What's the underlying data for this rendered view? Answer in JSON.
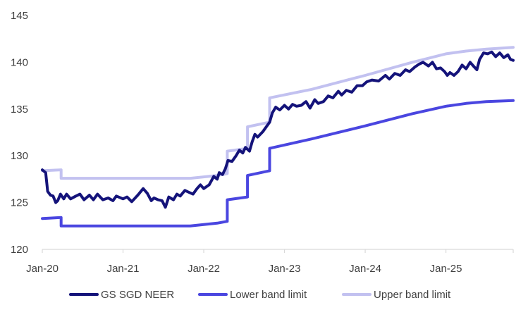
{
  "chart_data": {
    "type": "line",
    "title": "",
    "xlabel": "",
    "ylabel": "",
    "x_ticks": [
      "Jan-20",
      "Jan-21",
      "Jan-22",
      "Jan-23",
      "Jan-24",
      "Jan-25"
    ],
    "y_ticks": [
      120,
      125,
      130,
      135,
      140,
      145
    ],
    "ylim": [
      120,
      145
    ],
    "x_range_months": [
      0,
      70
    ],
    "grid": false,
    "legend_position": "bottom",
    "colors": {
      "neer": "#14137a",
      "lower": "#4a46e0",
      "upper": "#c2c1f0",
      "axis": "#d9d9d9",
      "text": "#404040"
    },
    "series": [
      {
        "name": "GS SGD NEER",
        "key": "neer",
        "points": [
          [
            0,
            128.5
          ],
          [
            0.5,
            128.2
          ],
          [
            0.8,
            126.2
          ],
          [
            1.2,
            125.8
          ],
          [
            1.6,
            125.7
          ],
          [
            2.0,
            125.0
          ],
          [
            2.3,
            125.2
          ],
          [
            2.7,
            125.9
          ],
          [
            3.2,
            125.4
          ],
          [
            3.6,
            125.9
          ],
          [
            4.2,
            125.4
          ],
          [
            5,
            125.7
          ],
          [
            5.6,
            125.9
          ],
          [
            6.2,
            125.3
          ],
          [
            7,
            125.8
          ],
          [
            7.6,
            125.3
          ],
          [
            8.2,
            125.9
          ],
          [
            9,
            125.3
          ],
          [
            9.8,
            125.5
          ],
          [
            10.5,
            125.2
          ],
          [
            11,
            125.7
          ],
          [
            12,
            125.4
          ],
          [
            12.6,
            125.6
          ],
          [
            13.3,
            125.1
          ],
          [
            14.2,
            125.8
          ],
          [
            15,
            126.5
          ],
          [
            15.6,
            126.0
          ],
          [
            16.2,
            125.2
          ],
          [
            16.6,
            125.5
          ],
          [
            17.2,
            125.3
          ],
          [
            17.8,
            125.2
          ],
          [
            18.3,
            124.5
          ],
          [
            18.8,
            125.6
          ],
          [
            19.5,
            125.3
          ],
          [
            20,
            125.9
          ],
          [
            20.5,
            125.7
          ],
          [
            21.2,
            126.3
          ],
          [
            21.8,
            126.1
          ],
          [
            22.4,
            125.9
          ],
          [
            23,
            126.5
          ],
          [
            23.5,
            126.9
          ],
          [
            24,
            126.5
          ],
          [
            24.8,
            126.9
          ],
          [
            25.5,
            127.8
          ],
          [
            26,
            127.5
          ],
          [
            26.3,
            128.2
          ],
          [
            26.8,
            128.0
          ],
          [
            27.2,
            128.6
          ],
          [
            27.6,
            129.5
          ],
          [
            28.2,
            129.4
          ],
          [
            28.8,
            130.0
          ],
          [
            29.3,
            130.6
          ],
          [
            29.8,
            130.3
          ],
          [
            30.2,
            130.9
          ],
          [
            30.8,
            130.5
          ],
          [
            31.2,
            131.5
          ],
          [
            31.6,
            132.3
          ],
          [
            32.0,
            132.0
          ],
          [
            32.8,
            132.6
          ],
          [
            33.4,
            133.2
          ],
          [
            33.8,
            133.6
          ],
          [
            34.2,
            134.6
          ],
          [
            34.7,
            135.2
          ],
          [
            35.3,
            134.9
          ],
          [
            36,
            135.4
          ],
          [
            36.6,
            135.0
          ],
          [
            37.2,
            135.5
          ],
          [
            37.8,
            135.3
          ],
          [
            38.5,
            135.4
          ],
          [
            39.2,
            135.8
          ],
          [
            39.8,
            135.1
          ],
          [
            40.5,
            136.0
          ],
          [
            41,
            135.6
          ],
          [
            41.8,
            135.8
          ],
          [
            42.5,
            136.4
          ],
          [
            43.2,
            136.2
          ],
          [
            44,
            136.9
          ],
          [
            44.5,
            136.5
          ],
          [
            45.2,
            137.0
          ],
          [
            46,
            136.8
          ],
          [
            46.8,
            137.5
          ],
          [
            47.6,
            137.5
          ],
          [
            48.2,
            137.9
          ],
          [
            49,
            138.1
          ],
          [
            50,
            138.0
          ],
          [
            51,
            138.6
          ],
          [
            51.6,
            138.2
          ],
          [
            52.4,
            138.8
          ],
          [
            53.2,
            138.6
          ],
          [
            54,
            139.2
          ],
          [
            54.6,
            139.0
          ],
          [
            55.4,
            139.5
          ],
          [
            56,
            139.8
          ],
          [
            56.6,
            140.0
          ],
          [
            57.4,
            139.6
          ],
          [
            58,
            140.0
          ],
          [
            58.6,
            139.3
          ],
          [
            59.2,
            139.4
          ],
          [
            59.8,
            139.0
          ],
          [
            60.2,
            138.6
          ],
          [
            60.6,
            138.9
          ],
          [
            61.2,
            138.6
          ],
          [
            61.8,
            139.0
          ],
          [
            62.4,
            139.7
          ],
          [
            63,
            139.3
          ],
          [
            63.6,
            140.0
          ],
          [
            64.2,
            139.5
          ],
          [
            64.6,
            139.2
          ],
          [
            65,
            140.3
          ],
          [
            65.6,
            141.0
          ],
          [
            66.2,
            140.9
          ],
          [
            66.8,
            141.1
          ],
          [
            67.4,
            140.6
          ],
          [
            68,
            141.0
          ],
          [
            68.6,
            140.5
          ],
          [
            69.2,
            140.8
          ],
          [
            69.6,
            140.3
          ],
          [
            70,
            140.2
          ]
        ]
      },
      {
        "name": "Lower band limit",
        "key": "lower",
        "points": [
          [
            0,
            123.3
          ],
          [
            2.8,
            123.4
          ],
          [
            2.8,
            122.5
          ],
          [
            22,
            122.5
          ],
          [
            26,
            122.8
          ],
          [
            27.5,
            123.0
          ],
          [
            27.5,
            125.3
          ],
          [
            30.5,
            125.6
          ],
          [
            30.5,
            127.9
          ],
          [
            33.8,
            128.4
          ],
          [
            33.8,
            130.8
          ],
          [
            40,
            131.8
          ],
          [
            48,
            133.2
          ],
          [
            55,
            134.5
          ],
          [
            60,
            135.3
          ],
          [
            63,
            135.6
          ],
          [
            66,
            135.8
          ],
          [
            70,
            135.9
          ]
        ]
      },
      {
        "name": "Upper band limit",
        "key": "upper",
        "points": [
          [
            0,
            128.4
          ],
          [
            2.8,
            128.5
          ],
          [
            2.8,
            127.6
          ],
          [
            22,
            127.6
          ],
          [
            26,
            127.9
          ],
          [
            27.5,
            128.1
          ],
          [
            27.5,
            130.5
          ],
          [
            30.5,
            130.8
          ],
          [
            30.5,
            133.1
          ],
          [
            33.8,
            133.6
          ],
          [
            33.8,
            136.2
          ],
          [
            40,
            137.1
          ],
          [
            48,
            138.6
          ],
          [
            55,
            140.0
          ],
          [
            60,
            140.9
          ],
          [
            63,
            141.2
          ],
          [
            66,
            141.4
          ],
          [
            70,
            141.6
          ]
        ]
      }
    ]
  }
}
